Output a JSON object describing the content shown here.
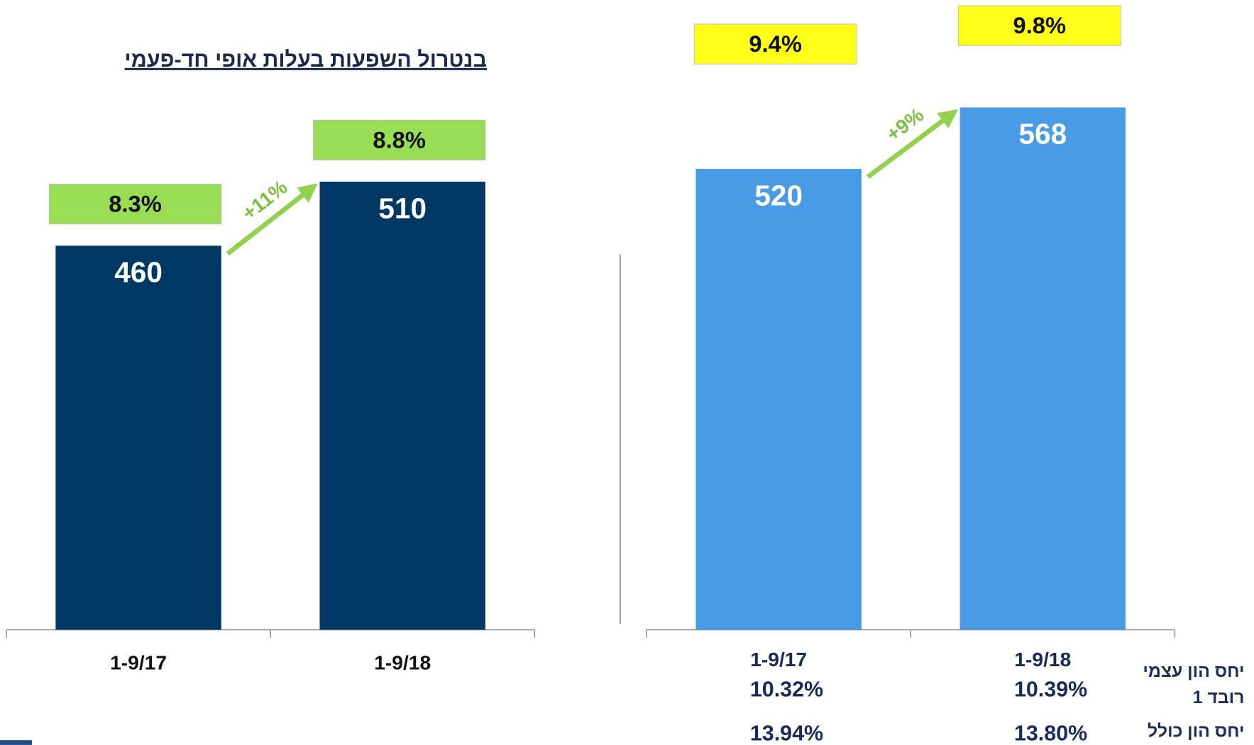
{
  "chart_data": [
    {
      "type": "bar",
      "title": "בנטרול השפעות בעלות אופי חד-פעמי",
      "categories": [
        "1-9/17",
        "1-9/18"
      ],
      "values": [
        460,
        510
      ],
      "color": "#003865",
      "ylim": [
        160,
        600
      ],
      "ratios": {
        "values": [
          8.3,
          8.8
        ],
        "value_labels": [
          "8.3%",
          "8.8%"
        ],
        "color": "#99dd55"
      },
      "growth": "+11%"
    },
    {
      "type": "bar",
      "categories": [
        "1-9/17",
        "1-9/18"
      ],
      "values": [
        520,
        568
      ],
      "color": "#4a9be6",
      "ylim": [
        160,
        600
      ],
      "ratios": {
        "values": [
          9.4,
          9.8
        ],
        "value_labels": [
          "9.4%",
          "9.8%"
        ],
        "color": "#ffff1a"
      },
      "growth": "+9%",
      "capital_ratios": [
        {
          "name": [
            "יחס הון עצמי",
            "רובד 1"
          ],
          "values": [
            10.32,
            10.39
          ],
          "value_labels": [
            "10.32%",
            "10.39%"
          ]
        },
        {
          "name": [
            "יחס הון כולל"
          ],
          "values": [
            13.94,
            13.8
          ],
          "value_labels": [
            "13.94%",
            "13.80%"
          ]
        }
      ]
    }
  ]
}
